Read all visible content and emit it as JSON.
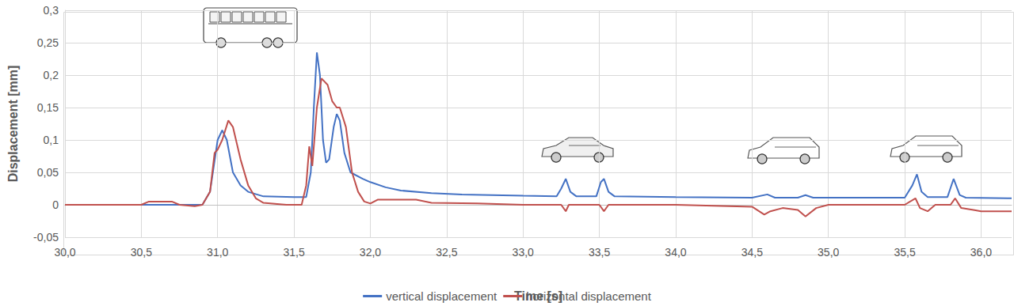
{
  "chart_data": {
    "type": "line",
    "xlabel": "Time [s]",
    "ylabel": "Displacement [mm]",
    "xlim": [
      30,
      36.2
    ],
    "xticks": [
      {
        "value": 30,
        "label": "30,0"
      },
      {
        "value": 30.5,
        "label": "30,5"
      },
      {
        "value": 31,
        "label": "31,0"
      },
      {
        "value": 31.5,
        "label": "31,5"
      },
      {
        "value": 32,
        "label": "32,0"
      },
      {
        "value": 32.5,
        "label": "32,5"
      },
      {
        "value": 33,
        "label": "33,0"
      },
      {
        "value": 33.5,
        "label": "33,5"
      },
      {
        "value": 34,
        "label": "34,0"
      },
      {
        "value": 34.5,
        "label": "34,5"
      },
      {
        "value": 35,
        "label": "35,0"
      },
      {
        "value": 35.5,
        "label": "35,5"
      },
      {
        "value": 36,
        "label": "36,0"
      }
    ],
    "ylim": [
      -0.05,
      0.3
    ],
    "yticks": [
      {
        "value": -0.05,
        "label": "-0,05"
      },
      0,
      {
        "value": 0.05,
        "label": "0,05"
      },
      {
        "value": 0.1,
        "label": "0,1"
      },
      {
        "value": 0.15,
        "label": "0,15"
      },
      {
        "value": 0.2,
        "label": "0,2"
      },
      {
        "value": 0.25,
        "label": "0,25"
      },
      {
        "value": 0.3,
        "label": "0,3"
      }
    ],
    "grid": true,
    "legend": "bottom",
    "series": [
      {
        "name": "vertical displacement",
        "color": "#4472c4",
        "x": [
          30.0,
          30.9,
          30.95,
          31.0,
          31.03,
          31.06,
          31.1,
          31.15,
          31.2,
          31.3,
          31.5,
          31.58,
          31.61,
          31.63,
          31.65,
          31.67,
          31.69,
          31.71,
          31.73,
          31.76,
          31.78,
          31.8,
          31.83,
          31.87,
          31.95,
          32.0,
          32.1,
          32.2,
          32.4,
          32.6,
          33.0,
          33.22,
          33.25,
          33.28,
          33.31,
          33.35,
          33.48,
          33.51,
          33.53,
          33.56,
          33.6,
          34.0,
          34.5,
          34.6,
          34.65,
          34.8,
          34.85,
          34.9,
          35.5,
          35.55,
          35.58,
          35.61,
          35.65,
          35.78,
          35.82,
          35.86,
          35.9,
          36.2
        ],
        "values": [
          0,
          0,
          0.02,
          0.1,
          0.115,
          0.1,
          0.05,
          0.03,
          0.02,
          0.013,
          0.012,
          0.012,
          0.05,
          0.15,
          0.235,
          0.2,
          0.1,
          0.065,
          0.07,
          0.12,
          0.14,
          0.13,
          0.08,
          0.05,
          0.04,
          0.035,
          0.027,
          0.022,
          0.018,
          0.016,
          0.014,
          0.013,
          0.025,
          0.04,
          0.02,
          0.013,
          0.013,
          0.035,
          0.04,
          0.02,
          0.013,
          0.012,
          0.011,
          0.016,
          0.011,
          0.011,
          0.015,
          0.011,
          0.011,
          0.03,
          0.047,
          0.02,
          0.012,
          0.012,
          0.04,
          0.015,
          0.011,
          0.01
        ]
      },
      {
        "name": "horizontal displacement",
        "color": "#c0504d",
        "x": [
          30.0,
          30.5,
          30.55,
          30.7,
          30.75,
          30.85,
          30.9,
          30.95,
          30.98,
          31.0,
          31.03,
          31.07,
          31.1,
          31.15,
          31.2,
          31.25,
          31.3,
          31.45,
          31.55,
          31.58,
          31.6,
          31.62,
          31.65,
          31.68,
          31.72,
          31.75,
          31.78,
          31.8,
          31.84,
          31.88,
          31.92,
          31.96,
          32.0,
          32.05,
          32.3,
          32.4,
          32.7,
          33.0,
          33.25,
          33.28,
          33.3,
          33.5,
          33.53,
          33.56,
          34.0,
          34.5,
          34.58,
          34.62,
          34.7,
          34.8,
          34.85,
          34.92,
          35.0,
          35.5,
          35.57,
          35.6,
          35.65,
          35.7,
          35.8,
          35.83,
          35.87,
          35.95,
          36.0,
          36.2
        ],
        "values": [
          0,
          0,
          0.005,
          0.005,
          0,
          -0.002,
          0,
          0.02,
          0.08,
          0.085,
          0.1,
          0.13,
          0.12,
          0.07,
          0.03,
          0.01,
          0.003,
          0,
          0,
          0.03,
          0.09,
          0.06,
          0.15,
          0.195,
          0.185,
          0.16,
          0.15,
          0.15,
          0.12,
          0.05,
          0.02,
          0.005,
          0.002,
          0.008,
          0.008,
          0.003,
          0.002,
          0,
          0,
          -0.01,
          0,
          0,
          -0.01,
          0,
          0,
          -0.003,
          -0.015,
          -0.01,
          -0.005,
          -0.008,
          -0.018,
          -0.005,
          0,
          0,
          0.01,
          -0.005,
          -0.01,
          0,
          0,
          0.01,
          -0.005,
          -0.008,
          -0.01,
          -0.01
        ]
      }
    ]
  }
}
